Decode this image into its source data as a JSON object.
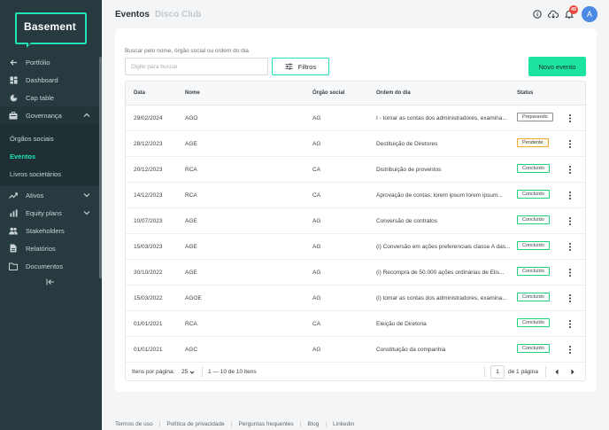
{
  "sidebar": {
    "logo": "Basement",
    "items": [
      {
        "label": "Portfólio",
        "icon": "arrow-left-icon"
      },
      {
        "label": "Dashboard",
        "icon": "dashboard-icon"
      },
      {
        "label": "Cap table",
        "icon": "pie-chart-icon"
      },
      {
        "label": "Governança",
        "icon": "briefcase-icon"
      },
      {
        "label": "Ativos",
        "icon": "trend-icon"
      },
      {
        "label": "Equity plans",
        "icon": "bar-chart-icon"
      },
      {
        "label": "Stakeholders",
        "icon": "people-icon"
      },
      {
        "label": "Relatórios",
        "icon": "document-icon"
      },
      {
        "label": "Documentos",
        "icon": "folder-icon"
      }
    ],
    "sub_items": [
      {
        "label": "Órgãos sociais"
      },
      {
        "label": "Eventos",
        "active": true
      },
      {
        "label": "Livros societários"
      }
    ]
  },
  "topbar": {
    "tabs": [
      "Eventos",
      "Disco Club"
    ],
    "notification_count": "45",
    "avatar_initial": "A"
  },
  "filters": {
    "search_label": "Buscar pelo nome, órgão social ou ordem do dia",
    "search_placeholder": "Digite para buscar",
    "filter_button": "Filtros",
    "new_button": "Novo evento"
  },
  "table": {
    "headers": [
      "Data",
      "Nome",
      "Órgão social",
      "Ordem do dia",
      "Status"
    ],
    "rows": [
      {
        "data": "29/02/2024",
        "nome": "AGO",
        "orgao": "AG",
        "ordem": "I - tomar as contas dos administradores, examina...",
        "status": "Preparando"
      },
      {
        "data": "28/12/2023",
        "nome": "AGE",
        "orgao": "AG",
        "ordem": "Destituição de Diretores",
        "status": "Pendente"
      },
      {
        "data": "20/12/2023",
        "nome": "RCA",
        "orgao": "CA",
        "ordem": "Distribuição de proventos",
        "status": "Concluído"
      },
      {
        "data": "14/12/2023",
        "nome": "RCA",
        "orgao": "CA",
        "ordem": "Aprovação de contas; lorem ipsum lorem ipsum...",
        "status": "Concluído"
      },
      {
        "data": "10/07/2023",
        "nome": "AGE",
        "orgao": "AG",
        "ordem": "Conversão de contratos",
        "status": "Concluído"
      },
      {
        "data": "15/03/2023",
        "nome": "AGE",
        "orgao": "AG",
        "ordem": "(i) Conversão em ações preferenciais classe A das...",
        "status": "Concluído"
      },
      {
        "data": "30/10/2022",
        "nome": "AGE",
        "orgao": "AG",
        "ordem": "(i) Recompra de 50.000 ações ordinárias de Elis...",
        "status": "Concluído"
      },
      {
        "data": "15/03/2022",
        "nome": "AGOE",
        "orgao": "AG",
        "ordem": "(i) tomar as contas dos administradores, examina...",
        "status": "Concluído"
      },
      {
        "data": "01/01/2021",
        "nome": "RCA",
        "orgao": "CA",
        "ordem": "Eleição de Diretoria",
        "status": "Concluído"
      },
      {
        "data": "01/01/2021",
        "nome": "AGC",
        "orgao": "AG",
        "ordem": "Constituição da companhia",
        "status": "Concluído"
      }
    ],
    "status_colors": {
      "Preparando": "#8a9299",
      "Pendente": "#f0a830",
      "Concluído": "#1fd27a"
    }
  },
  "pagination": {
    "per_page_label": "Itens por página:",
    "per_page_value": "25",
    "range_text": "1 — 10 de 10 itens",
    "current_page": "1",
    "total_pages_text": "de 1 página"
  },
  "footer": {
    "links": [
      "Termos de uso",
      "Política de privacidade",
      "Perguntas frequentes",
      "Blog",
      "Linkedin"
    ]
  },
  "colors": {
    "sidebar_bg": "#263a3f",
    "accent": "#1de3b5",
    "primary_button": "#1de3a0",
    "badge": "#e8473c",
    "avatar": "#4d8ae6"
  }
}
